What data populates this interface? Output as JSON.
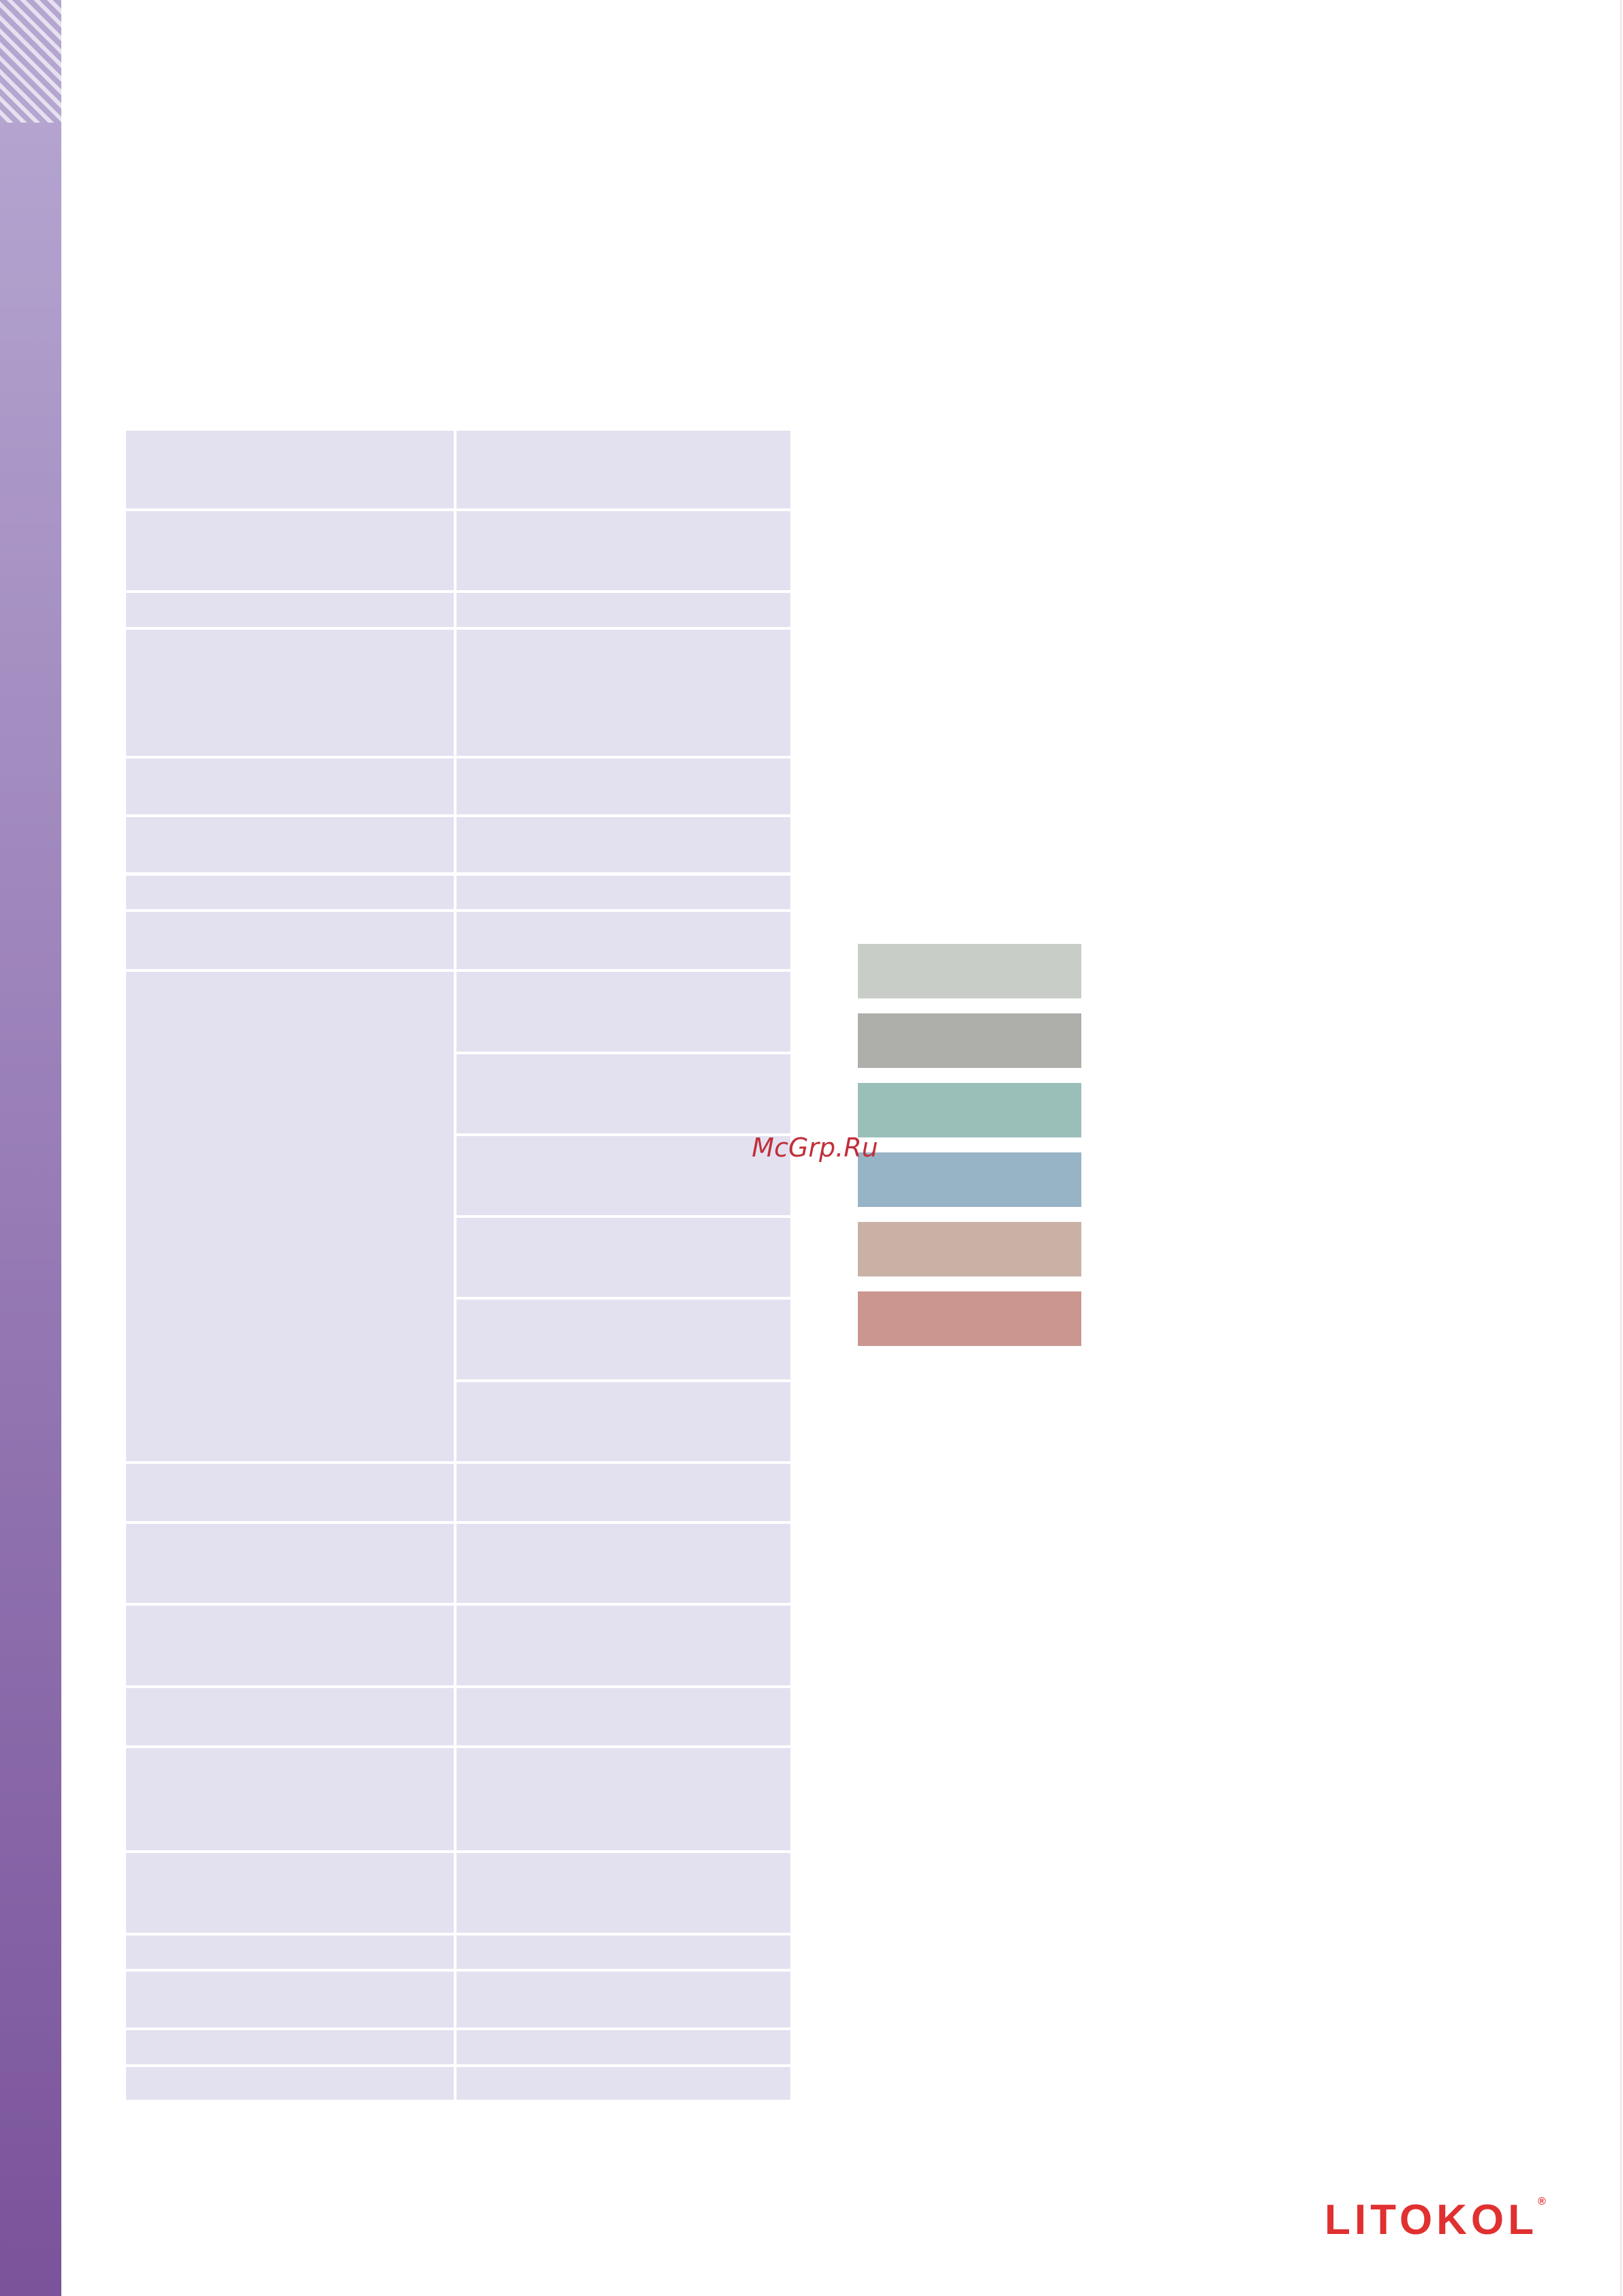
{
  "watermark": "McGrp.Ru",
  "logo": "LITOKOL",
  "logo_mark": "®"
}
